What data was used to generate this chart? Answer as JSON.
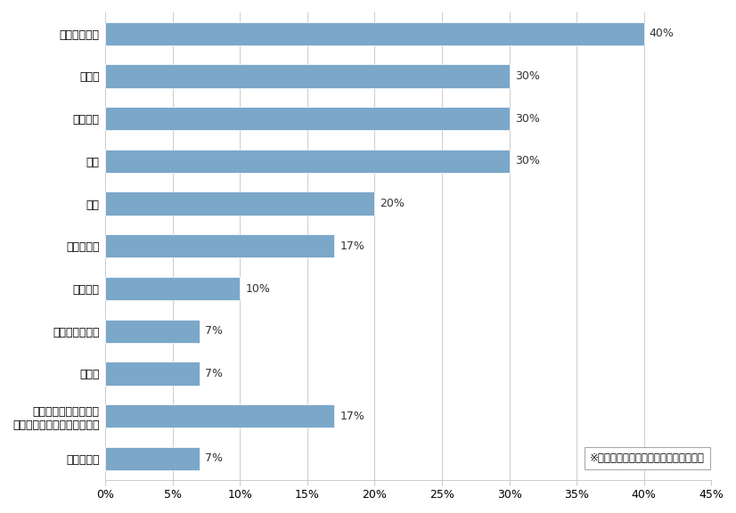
{
  "categories": [
    "分からない",
    "現時点で来年海外への\nビジネス拡大を考えていない",
    "その他",
    "バングラデシュ",
    "ブラジル",
    "フィリピン",
    "韓国",
    "中国",
    "ベトナム",
    "インド",
    "インドネシア"
  ],
  "values": [
    7,
    17,
    7,
    7,
    10,
    17,
    20,
    30,
    30,
    30,
    40
  ],
  "bar_color": "#7BA7C9",
  "label_color": "#333333",
  "background_color": "#ffffff",
  "annotation_text": "※一回答者につき、最大５カ国まで回答",
  "xlim": [
    0,
    45
  ],
  "xtick_values": [
    0,
    5,
    10,
    15,
    20,
    25,
    30,
    35,
    40,
    45
  ],
  "bar_height": 0.55,
  "figsize": [
    8.26,
    5.76
  ],
  "dpi": 100
}
